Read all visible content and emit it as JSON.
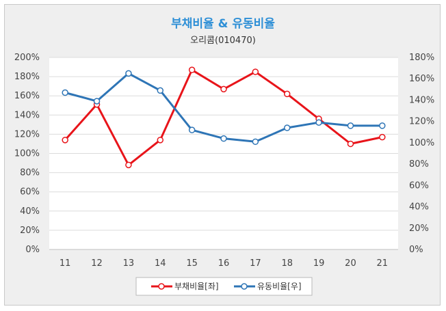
{
  "chart_data": {
    "type": "line",
    "title": "부채비율 & 유동비율",
    "subtitle": "오리콤(010470)",
    "categories": [
      "11",
      "12",
      "13",
      "14",
      "15",
      "16",
      "17",
      "18",
      "19",
      "20",
      "21"
    ],
    "y_left": {
      "range": [
        0,
        200
      ],
      "ticks": [
        "0%",
        "20%",
        "40%",
        "60%",
        "80%",
        "100%",
        "120%",
        "140%",
        "160%",
        "180%",
        "200%"
      ]
    },
    "y_right": {
      "range": [
        0,
        180
      ],
      "ticks": [
        "0%",
        "20%",
        "40%",
        "60%",
        "80%",
        "100%",
        "120%",
        "140%",
        "160%",
        "180%"
      ]
    },
    "grid": true,
    "legend_position": "bottom",
    "series": [
      {
        "name": "부채비율[좌]",
        "axis": "left",
        "color": "#e8141a",
        "values": [
          114,
          151,
          88,
          114,
          187,
          167,
          185,
          162,
          136,
          110,
          117
        ]
      },
      {
        "name": "유동비율[우]",
        "axis": "right",
        "color": "#2e75b6",
        "values": [
          147,
          139,
          165,
          149,
          112,
          104,
          101,
          114,
          119,
          116,
          116
        ]
      }
    ]
  }
}
